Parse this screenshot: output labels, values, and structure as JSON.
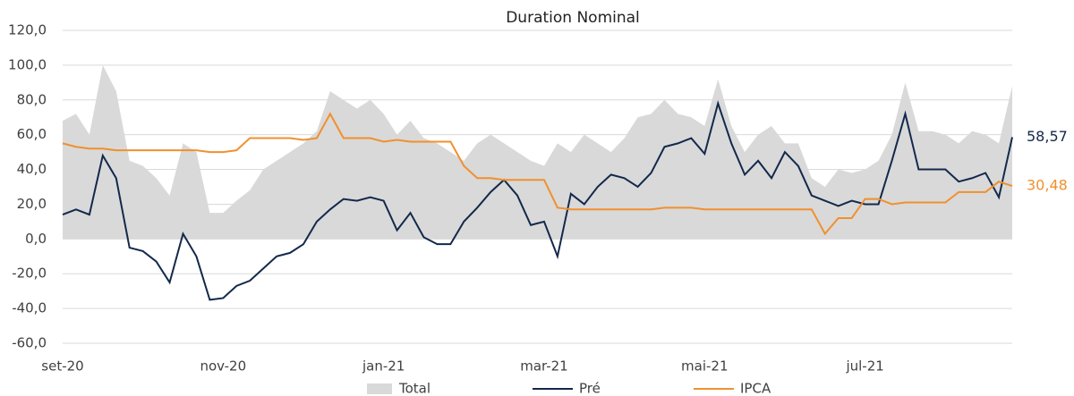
{
  "chart_data": {
    "type": "line",
    "title": "Duration Nominal",
    "categories": [
      "set-20",
      null,
      null,
      null,
      null,
      null,
      null,
      null,
      null,
      null,
      null,
      null,
      "nov-20",
      null,
      null,
      null,
      null,
      null,
      null,
      null,
      null,
      null,
      null,
      null,
      "jan-21",
      null,
      null,
      null,
      null,
      null,
      null,
      null,
      null,
      null,
      null,
      null,
      "mar-21",
      null,
      null,
      null,
      null,
      null,
      null,
      null,
      null,
      null,
      null,
      null,
      "mai-21",
      null,
      null,
      null,
      null,
      null,
      null,
      null,
      null,
      null,
      null,
      null,
      "jul-21",
      null,
      null,
      null,
      null,
      null,
      null,
      null,
      null,
      null,
      null,
      null
    ],
    "series": [
      {
        "name": "Total",
        "kind": "area",
        "color": "#d9d9d9",
        "values": [
          68,
          72,
          60,
          100,
          85,
          45,
          42,
          35,
          25,
          55,
          50,
          15,
          15,
          22,
          28,
          40,
          45,
          50,
          55,
          62,
          85,
          80,
          75,
          80,
          72,
          60,
          68,
          58,
          55,
          50,
          45,
          55,
          60,
          55,
          50,
          45,
          42,
          55,
          50,
          60,
          55,
          50,
          58,
          70,
          72,
          80,
          72,
          70,
          65,
          92,
          65,
          50,
          60,
          65,
          55,
          55,
          35,
          30,
          40,
          38,
          40,
          45,
          60,
          90,
          62,
          62,
          60,
          55,
          62,
          60,
          55,
          88
        ]
      },
      {
        "name": "Pré",
        "kind": "line",
        "color": "#13294b",
        "end_label": "58,57",
        "values": [
          14,
          17,
          14,
          48,
          35,
          -5,
          -7,
          -13,
          -25,
          3,
          -10,
          -35,
          -34,
          -27,
          -24,
          -17,
          -10,
          -8,
          -3,
          10,
          17,
          23,
          22,
          24,
          22,
          5,
          15,
          1,
          -3,
          -3,
          10,
          18,
          27,
          34,
          25,
          8,
          10,
          -10,
          26,
          20,
          30,
          37,
          35,
          30,
          38,
          53,
          55,
          58,
          49,
          78,
          55,
          37,
          45,
          35,
          50,
          42,
          25,
          22,
          19,
          22,
          20,
          20,
          45,
          72,
          40,
          40,
          40,
          33,
          35,
          38,
          24,
          58.57
        ]
      },
      {
        "name": "IPCA",
        "kind": "line",
        "color": "#f0902f",
        "end_label": "30,48",
        "values": [
          55,
          53,
          52,
          52,
          51,
          51,
          51,
          51,
          51,
          51,
          51,
          50,
          50,
          51,
          58,
          58,
          58,
          58,
          57,
          58,
          72,
          58,
          58,
          58,
          56,
          57,
          56,
          56,
          56,
          56,
          42,
          35,
          35,
          34,
          34,
          34,
          34,
          18,
          17,
          17,
          17,
          17,
          17,
          17,
          17,
          18,
          18,
          18,
          17,
          17,
          17,
          17,
          17,
          17,
          17,
          17,
          17,
          3,
          12,
          12,
          23,
          23,
          20,
          21,
          21,
          21,
          21,
          27,
          27,
          27,
          33,
          30.48
        ]
      }
    ],
    "ylim": [
      -60,
      120
    ],
    "yticks": [
      {
        "value": -60,
        "label": "-60,0"
      },
      {
        "value": -40,
        "label": "-40,0"
      },
      {
        "value": -20,
        "label": "-20,0"
      },
      {
        "value": 0,
        "label": "0,0"
      },
      {
        "value": 20,
        "label": "20,0"
      },
      {
        "value": 40,
        "label": "40,0"
      },
      {
        "value": 60,
        "label": "60,0"
      },
      {
        "value": 80,
        "label": "80,0"
      },
      {
        "value": 100,
        "label": "100,0"
      },
      {
        "value": 120,
        "label": "120,0"
      }
    ],
    "grid": true,
    "legend": "bottom"
  }
}
